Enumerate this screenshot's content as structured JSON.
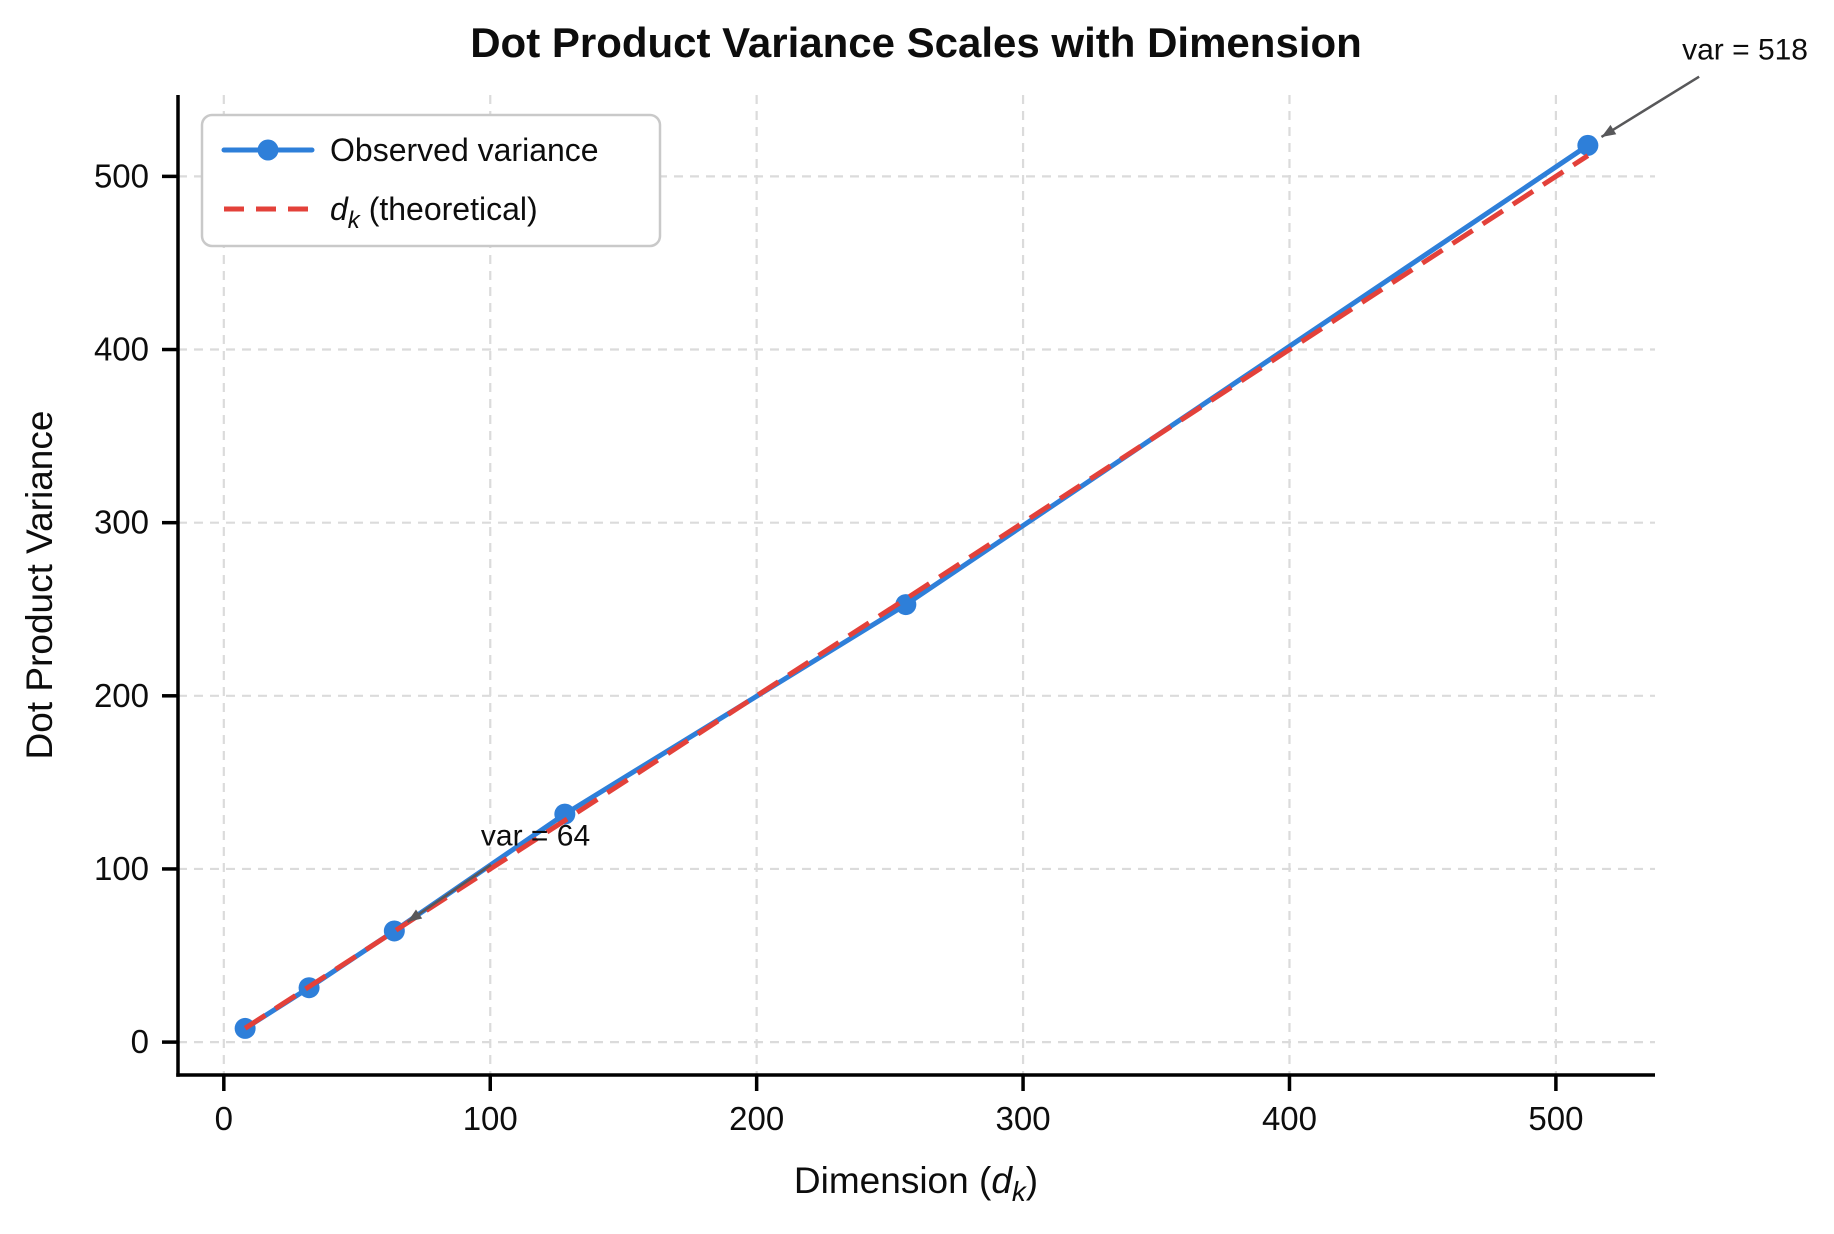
{
  "chart_data": {
    "type": "line",
    "title": "Dot Product Variance Scales with Dimension",
    "xlabel_text": "Dimension (dk)",
    "xlabel_parts": [
      {
        "t": "Dimension ("
      },
      {
        "t": "d",
        "i": true
      },
      {
        "t": "k",
        "i": true,
        "sub": true
      },
      {
        "t": ")"
      }
    ],
    "ylabel": "Dot Product Variance",
    "x": [
      8,
      32,
      64,
      128,
      256,
      512
    ],
    "series": [
      {
        "name": "Observed variance",
        "values": [
          7.9,
          31.4,
          64.2,
          131.7,
          252.7,
          517.9
        ],
        "color": "#2E7FD9",
        "line_style": "solid",
        "marker": "circle"
      },
      {
        "name": "dk (theoretical)",
        "label_parts": [
          {
            "t": "d",
            "i": true
          },
          {
            "t": "k",
            "i": true,
            "sub": true
          },
          {
            "t": " (theoretical)"
          }
        ],
        "values": [
          8,
          32,
          64,
          128,
          256,
          512
        ],
        "color": "#E3413A",
        "line_style": "dashed",
        "marker": "none"
      }
    ],
    "xlim": [
      -17.2,
      537.2
    ],
    "ylim": [
      -19,
      547
    ],
    "xticks": [
      0,
      100,
      200,
      300,
      400,
      500
    ],
    "yticks": [
      0,
      100,
      200,
      300,
      400,
      500
    ],
    "grid": true,
    "legend_position": "upper left",
    "annotations": [
      {
        "text": "var = 64",
        "point": [
          64,
          64.2
        ],
        "text_at": [
          117,
          120
        ]
      },
      {
        "text": "var = 518",
        "point": [
          512,
          517.9
        ],
        "text_at": [
          571,
          574
        ]
      }
    ],
    "colors": {
      "grid": "#DBDBDB",
      "spine": "#000000",
      "text": "#0D0D0D",
      "annotation_arrow": "#58585A",
      "legend_border": "#C9C9C9",
      "background": "#FFFFFF"
    }
  }
}
